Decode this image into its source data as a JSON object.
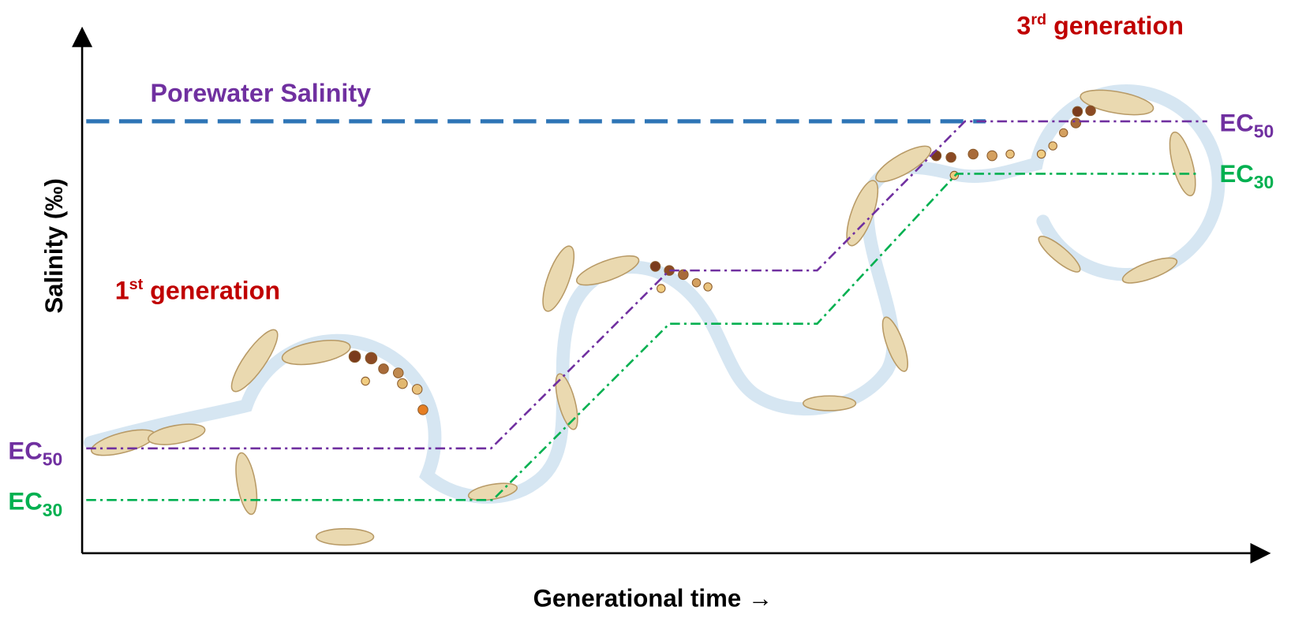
{
  "axes": {
    "y_label": "Salinity (‰)",
    "x_label": "Generational time →"
  },
  "annotations": {
    "porewater": "Porewater Salinity",
    "first_generation": {
      "number": "1",
      "suffix": "st",
      "text": " generation"
    },
    "third_generation": {
      "number": "3",
      "suffix": "rd",
      "text": " generation"
    }
  },
  "levels": {
    "left": {
      "ec50": {
        "base": "EC",
        "sub": "50"
      },
      "ec30": {
        "base": "EC",
        "sub": "30"
      }
    },
    "right": {
      "ec50": {
        "base": "EC",
        "sub": "50"
      },
      "ec30": {
        "base": "EC",
        "sub": "30"
      }
    }
  }
}
